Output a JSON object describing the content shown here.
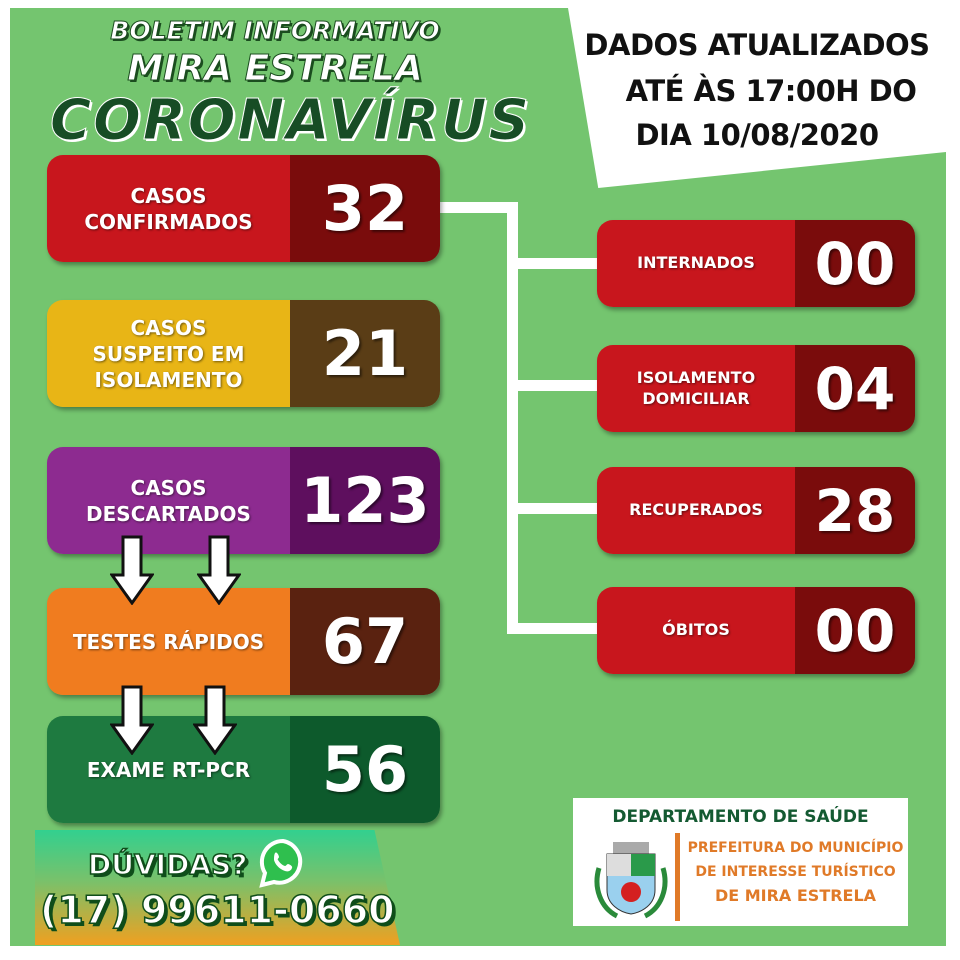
{
  "header": {
    "line1": "BOLETIM INFORMATIVO",
    "line2": "MIRA ESTRELA",
    "line3": "CORONAVÍRUS"
  },
  "update": {
    "line1": "DADOS ATUALIZADOS",
    "line2": "ATÉ ÀS 17:00H DO",
    "line3": "DIA 10/08/2020"
  },
  "left_cards": [
    {
      "label": "CASOS\nCONFIRMADOS",
      "value": "32",
      "color": "#c8161d",
      "dark": "#7a0c0c"
    },
    {
      "label": "CASOS\nSUSPEITO EM\nISOLAMENTO",
      "value": "21",
      "color": "#e8b516",
      "dark": "#5a3d16"
    },
    {
      "label": "CASOS\nDESCARTADOS",
      "value": "123",
      "color": "#8d2b90",
      "dark": "#5e0f5e"
    },
    {
      "label": "TESTES RÁPIDOS",
      "value": "67",
      "color": "#f07c1f",
      "dark": "#5a2210"
    },
    {
      "label": "EXAME RT-PCR",
      "value": "56",
      "color": "#1e7a40",
      "dark": "#0d5a2c"
    }
  ],
  "right_cards": [
    {
      "label": "INTERNADOS",
      "value": "00"
    },
    {
      "label": "ISOLAMENTO\nDOMICILIAR",
      "value": "04"
    },
    {
      "label": "RECUPERADOS",
      "value": "28"
    },
    {
      "label": "ÓBITOS",
      "value": "00"
    }
  ],
  "contact": {
    "question": "DÚVIDAS?",
    "phone": "(17) 99611-0660",
    "icon": "whatsapp-icon"
  },
  "department": {
    "title": "DEPARTAMENTO DE SAÚDE",
    "line1": "PREFEITURA DO MUNICÍPIO",
    "line2": "DE INTERESSE TURÍSTICO",
    "line3": "DE MIRA ESTRELA",
    "logo": "city-coat-of-arms"
  }
}
